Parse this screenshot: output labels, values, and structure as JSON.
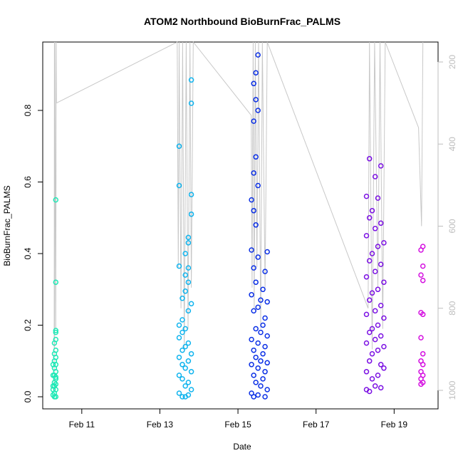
{
  "chart_data": {
    "type": "scatter",
    "title": "ATOM2 Northbound BioBurnFrac_PALMS",
    "xlabel": "Date",
    "ylabel": "BioBurnFrac_PALMS",
    "x_ticks": [
      "Feb 11",
      "Feb 13",
      "Feb 15",
      "Feb 17",
      "Feb 19"
    ],
    "y_ticks": [
      "0.0",
      "0.2",
      "0.4",
      "0.6",
      "0.8"
    ],
    "y2_ticks": [
      "200",
      "400",
      "600",
      "800",
      "1000"
    ],
    "x_range": [
      "2017-02-10T00:00",
      "2017-02-20T03:00"
    ],
    "ylim": [
      0,
      1
    ],
    "y2_range": [
      1035,
      130
    ],
    "y2_reversed": true,
    "grid": false,
    "colors": {
      "feb10": "#1de9b6",
      "feb13": "#10b4ee",
      "feb15": "#0a2fe6",
      "feb18": "#7b10e3",
      "feb19": "#d40fe0",
      "altitude_line": "#c8c8c8",
      "right_axis": "#bdbdbd"
    },
    "series": [
      {
        "color": "#1de9b6",
        "points": [
          [
            "2017-02-10T08:00",
            0.55
          ],
          [
            "2017-02-10T08:00",
            0.32
          ],
          [
            "2017-02-10T08:00",
            0.185
          ],
          [
            "2017-02-10T08:00",
            0.18
          ],
          [
            "2017-02-10T08:00",
            0.16
          ],
          [
            "2017-02-10T07:10",
            0.15
          ],
          [
            "2017-02-10T08:00",
            0.13
          ],
          [
            "2017-02-10T08:00",
            0.11
          ],
          [
            "2017-02-10T07:10",
            0.1
          ],
          [
            "2017-02-10T08:00",
            0.09
          ],
          [
            "2017-02-10T07:10",
            0.08
          ],
          [
            "2017-02-10T08:00",
            0.07
          ],
          [
            "2017-02-10T07:10",
            0.06
          ],
          [
            "2017-02-10T08:00",
            0.05
          ],
          [
            "2017-02-10T07:10",
            0.04
          ],
          [
            "2017-02-10T08:00",
            0.035
          ],
          [
            "2017-02-10T07:10",
            0.03
          ],
          [
            "2017-02-10T08:00",
            0.02
          ],
          [
            "2017-02-10T07:10",
            0.01
          ],
          [
            "2017-02-10T08:00",
            0.0
          ],
          [
            "2017-02-10T07:10",
            0.0
          ],
          [
            "2017-02-10T06:20",
            0.005
          ],
          [
            "2017-02-10T06:20",
            0.03
          ],
          [
            "2017-02-10T06:20",
            0.06
          ],
          [
            "2017-02-10T06:20",
            0.09
          ],
          [
            "2017-02-10T07:10",
            0.12
          ],
          [
            "2017-02-10T06:20",
            0.02
          ],
          [
            "2017-02-10T08:00",
            0.055
          ]
        ]
      },
      {
        "color": "#10b4ee",
        "points": [
          [
            "2017-02-13T11:50",
            0.7
          ],
          [
            "2017-02-13T11:50",
            0.59
          ],
          [
            "2017-02-13T11:50",
            0.365
          ],
          [
            "2017-02-13T19:20",
            0.885
          ],
          [
            "2017-02-13T19:20",
            0.82
          ],
          [
            "2017-02-13T19:20",
            0.565
          ],
          [
            "2017-02-13T19:20",
            0.51
          ],
          [
            "2017-02-13T17:30",
            0.445
          ],
          [
            "2017-02-13T17:30",
            0.43
          ],
          [
            "2017-02-13T15:40",
            0.4
          ],
          [
            "2017-02-13T17:30",
            0.36
          ],
          [
            "2017-02-13T15:40",
            0.34
          ],
          [
            "2017-02-13T17:30",
            0.32
          ],
          [
            "2017-02-13T15:40",
            0.295
          ],
          [
            "2017-02-13T13:50",
            0.275
          ],
          [
            "2017-02-13T19:20",
            0.26
          ],
          [
            "2017-02-13T17:30",
            0.24
          ],
          [
            "2017-02-13T13:50",
            0.215
          ],
          [
            "2017-02-13T11:50",
            0.2
          ],
          [
            "2017-02-13T15:40",
            0.19
          ],
          [
            "2017-02-13T13:50",
            0.18
          ],
          [
            "2017-02-13T11:50",
            0.165
          ],
          [
            "2017-02-13T17:30",
            0.15
          ],
          [
            "2017-02-13T15:40",
            0.14
          ],
          [
            "2017-02-13T13:50",
            0.13
          ],
          [
            "2017-02-13T19:20",
            0.12
          ],
          [
            "2017-02-13T11:50",
            0.11
          ],
          [
            "2017-02-13T17:30",
            0.1
          ],
          [
            "2017-02-13T13:50",
            0.09
          ],
          [
            "2017-02-13T15:40",
            0.08
          ],
          [
            "2017-02-13T19:20",
            0.07
          ],
          [
            "2017-02-13T11:50",
            0.06
          ],
          [
            "2017-02-13T13:50",
            0.05
          ],
          [
            "2017-02-13T17:30",
            0.04
          ],
          [
            "2017-02-13T15:40",
            0.03
          ],
          [
            "2017-02-13T19:20",
            0.02
          ],
          [
            "2017-02-13T11:50",
            0.01
          ],
          [
            "2017-02-13T13:50",
            0.0
          ],
          [
            "2017-02-13T17:30",
            0.005
          ],
          [
            "2017-02-13T15:40",
            0.0
          ]
        ]
      },
      {
        "color": "#0a2fe6",
        "points": [
          [
            "2017-02-15T12:20",
            0.955
          ],
          [
            "2017-02-15T11:00",
            0.905
          ],
          [
            "2017-02-15T09:40",
            0.875
          ],
          [
            "2017-02-15T11:00",
            0.83
          ],
          [
            "2017-02-15T12:20",
            0.8
          ],
          [
            "2017-02-15T09:40",
            0.77
          ],
          [
            "2017-02-15T11:00",
            0.67
          ],
          [
            "2017-02-15T09:40",
            0.625
          ],
          [
            "2017-02-15T12:20",
            0.59
          ],
          [
            "2017-02-15T08:20",
            0.55
          ],
          [
            "2017-02-15T09:40",
            0.52
          ],
          [
            "2017-02-15T11:00",
            0.48
          ],
          [
            "2017-02-15T08:20",
            0.41
          ],
          [
            "2017-02-15T18:00",
            0.405
          ],
          [
            "2017-02-15T12:20",
            0.39
          ],
          [
            "2017-02-15T09:40",
            0.36
          ],
          [
            "2017-02-15T16:40",
            0.35
          ],
          [
            "2017-02-15T11:00",
            0.32
          ],
          [
            "2017-02-15T15:20",
            0.3
          ],
          [
            "2017-02-15T08:20",
            0.285
          ],
          [
            "2017-02-15T14:00",
            0.27
          ],
          [
            "2017-02-15T18:00",
            0.265
          ],
          [
            "2017-02-15T12:20",
            0.25
          ],
          [
            "2017-02-15T09:40",
            0.24
          ],
          [
            "2017-02-15T16:40",
            0.22
          ],
          [
            "2017-02-15T15:20",
            0.2
          ],
          [
            "2017-02-15T11:00",
            0.19
          ],
          [
            "2017-02-15T14:00",
            0.18
          ],
          [
            "2017-02-15T18:00",
            0.17
          ],
          [
            "2017-02-15T08:20",
            0.16
          ],
          [
            "2017-02-15T12:20",
            0.15
          ],
          [
            "2017-02-15T16:40",
            0.14
          ],
          [
            "2017-02-15T09:40",
            0.13
          ],
          [
            "2017-02-15T15:20",
            0.12
          ],
          [
            "2017-02-15T11:00",
            0.11
          ],
          [
            "2017-02-15T14:00",
            0.1
          ],
          [
            "2017-02-15T18:00",
            0.095
          ],
          [
            "2017-02-15T08:20",
            0.09
          ],
          [
            "2017-02-15T12:20",
            0.08
          ],
          [
            "2017-02-15T16:40",
            0.07
          ],
          [
            "2017-02-15T09:40",
            0.06
          ],
          [
            "2017-02-15T15:20",
            0.05
          ],
          [
            "2017-02-15T11:00",
            0.04
          ],
          [
            "2017-02-15T14:00",
            0.03
          ],
          [
            "2017-02-15T18:00",
            0.02
          ],
          [
            "2017-02-15T08:20",
            0.01
          ],
          [
            "2017-02-15T12:20",
            0.005
          ],
          [
            "2017-02-15T16:40",
            0.0
          ],
          [
            "2017-02-15T09:40",
            0.0
          ]
        ]
      },
      {
        "color": "#7b10e3",
        "points": [
          [
            "2017-02-18T08:50",
            0.665
          ],
          [
            "2017-02-18T15:50",
            0.645
          ],
          [
            "2017-02-18T12:20",
            0.615
          ],
          [
            "2017-02-18T07:00",
            0.56
          ],
          [
            "2017-02-18T14:00",
            0.555
          ],
          [
            "2017-02-18T10:30",
            0.52
          ],
          [
            "2017-02-18T08:50",
            0.5
          ],
          [
            "2017-02-18T15:50",
            0.485
          ],
          [
            "2017-02-18T12:20",
            0.47
          ],
          [
            "2017-02-18T07:00",
            0.45
          ],
          [
            "2017-02-18T17:40",
            0.43
          ],
          [
            "2017-02-18T14:00",
            0.42
          ],
          [
            "2017-02-18T10:30",
            0.4
          ],
          [
            "2017-02-18T08:50",
            0.38
          ],
          [
            "2017-02-18T15:50",
            0.37
          ],
          [
            "2017-02-18T12:20",
            0.35
          ],
          [
            "2017-02-18T07:00",
            0.335
          ],
          [
            "2017-02-18T17:40",
            0.32
          ],
          [
            "2017-02-18T14:00",
            0.3
          ],
          [
            "2017-02-18T10:30",
            0.29
          ],
          [
            "2017-02-18T08:50",
            0.27
          ],
          [
            "2017-02-18T15:50",
            0.255
          ],
          [
            "2017-02-18T12:20",
            0.24
          ],
          [
            "2017-02-18T07:00",
            0.23
          ],
          [
            "2017-02-18T17:40",
            0.22
          ],
          [
            "2017-02-18T14:00",
            0.2
          ],
          [
            "2017-02-18T10:30",
            0.19
          ],
          [
            "2017-02-18T08:50",
            0.18
          ],
          [
            "2017-02-18T15:50",
            0.17
          ],
          [
            "2017-02-18T12:20",
            0.16
          ],
          [
            "2017-02-18T07:00",
            0.15
          ],
          [
            "2017-02-18T17:40",
            0.14
          ],
          [
            "2017-02-18T14:00",
            0.13
          ],
          [
            "2017-02-18T10:30",
            0.12
          ],
          [
            "2017-02-18T08:50",
            0.1
          ],
          [
            "2017-02-18T15:50",
            0.09
          ],
          [
            "2017-02-18T17:40",
            0.08
          ],
          [
            "2017-02-18T07:00",
            0.07
          ],
          [
            "2017-02-18T14:00",
            0.06
          ],
          [
            "2017-02-18T10:30",
            0.05
          ],
          [
            "2017-02-18T12:20",
            0.03
          ],
          [
            "2017-02-18T07:00",
            0.02
          ],
          [
            "2017-02-18T15:50",
            0.025
          ],
          [
            "2017-02-18T08:50",
            0.015
          ]
        ]
      },
      {
        "color": "#d40fe0",
        "points": [
          [
            "2017-02-19T17:40",
            0.42
          ],
          [
            "2017-02-19T16:30",
            0.41
          ],
          [
            "2017-02-19T17:40",
            0.365
          ],
          [
            "2017-02-19T16:30",
            0.34
          ],
          [
            "2017-02-19T17:40",
            0.325
          ],
          [
            "2017-02-19T16:30",
            0.235
          ],
          [
            "2017-02-19T17:40",
            0.23
          ],
          [
            "2017-02-19T16:30",
            0.165
          ],
          [
            "2017-02-19T17:40",
            0.12
          ],
          [
            "2017-02-19T16:30",
            0.1
          ],
          [
            "2017-02-19T17:40",
            0.09
          ],
          [
            "2017-02-19T16:30",
            0.07
          ],
          [
            "2017-02-19T17:40",
            0.06
          ],
          [
            "2017-02-19T16:30",
            0.05
          ],
          [
            "2017-02-19T17:40",
            0.04
          ],
          [
            "2017-02-19T16:30",
            0.035
          ]
        ]
      }
    ],
    "altitude_line": [
      [
        "2017-02-10T07:00",
        1000
      ],
      [
        "2017-02-10T07:10",
        150
      ],
      [
        "2017-02-10T07:20",
        900
      ],
      [
        "2017-02-10T07:30",
        130
      ],
      [
        "2017-02-10T08:00",
        850
      ],
      [
        "2017-02-10T08:20",
        130
      ],
      [
        "2017-02-10T08:30",
        300
      ],
      [
        "2017-02-13T10:40",
        130
      ],
      [
        "2017-02-13T11:20",
        700
      ],
      [
        "2017-02-13T11:50",
        130
      ],
      [
        "2017-02-13T13:00",
        800
      ],
      [
        "2017-02-13T14:00",
        130
      ],
      [
        "2017-02-13T15:00",
        900
      ],
      [
        "2017-02-13T16:10",
        130
      ],
      [
        "2017-02-13T17:20",
        850
      ],
      [
        "2017-02-13T18:30",
        130
      ],
      [
        "2017-02-13T19:20",
        750
      ],
      [
        "2017-02-13T20:30",
        130
      ],
      [
        "2017-02-15T08:10",
        330
      ],
      [
        "2017-02-15T08:40",
        750
      ],
      [
        "2017-02-15T09:20",
        130
      ],
      [
        "2017-02-15T10:00",
        800
      ],
      [
        "2017-02-15T10:40",
        130
      ],
      [
        "2017-02-15T11:40",
        700
      ],
      [
        "2017-02-15T12:40",
        130
      ],
      [
        "2017-02-15T14:00",
        850
      ],
      [
        "2017-02-15T15:00",
        130
      ],
      [
        "2017-02-15T16:40",
        750
      ],
      [
        "2017-02-15T18:00",
        130
      ],
      [
        "2017-02-18T08:00",
        800
      ],
      [
        "2017-02-18T08:50",
        130
      ],
      [
        "2017-02-18T10:30",
        900
      ],
      [
        "2017-02-18T12:00",
        130
      ],
      [
        "2017-02-18T14:00",
        750
      ],
      [
        "2017-02-18T15:20",
        130
      ],
      [
        "2017-02-18T17:00",
        850
      ],
      [
        "2017-02-18T18:30",
        130
      ],
      [
        "2017-02-19T15:00",
        360
      ],
      [
        "2017-02-19T16:50",
        600
      ],
      [
        "2017-02-19T17:40",
        130
      ]
    ]
  }
}
